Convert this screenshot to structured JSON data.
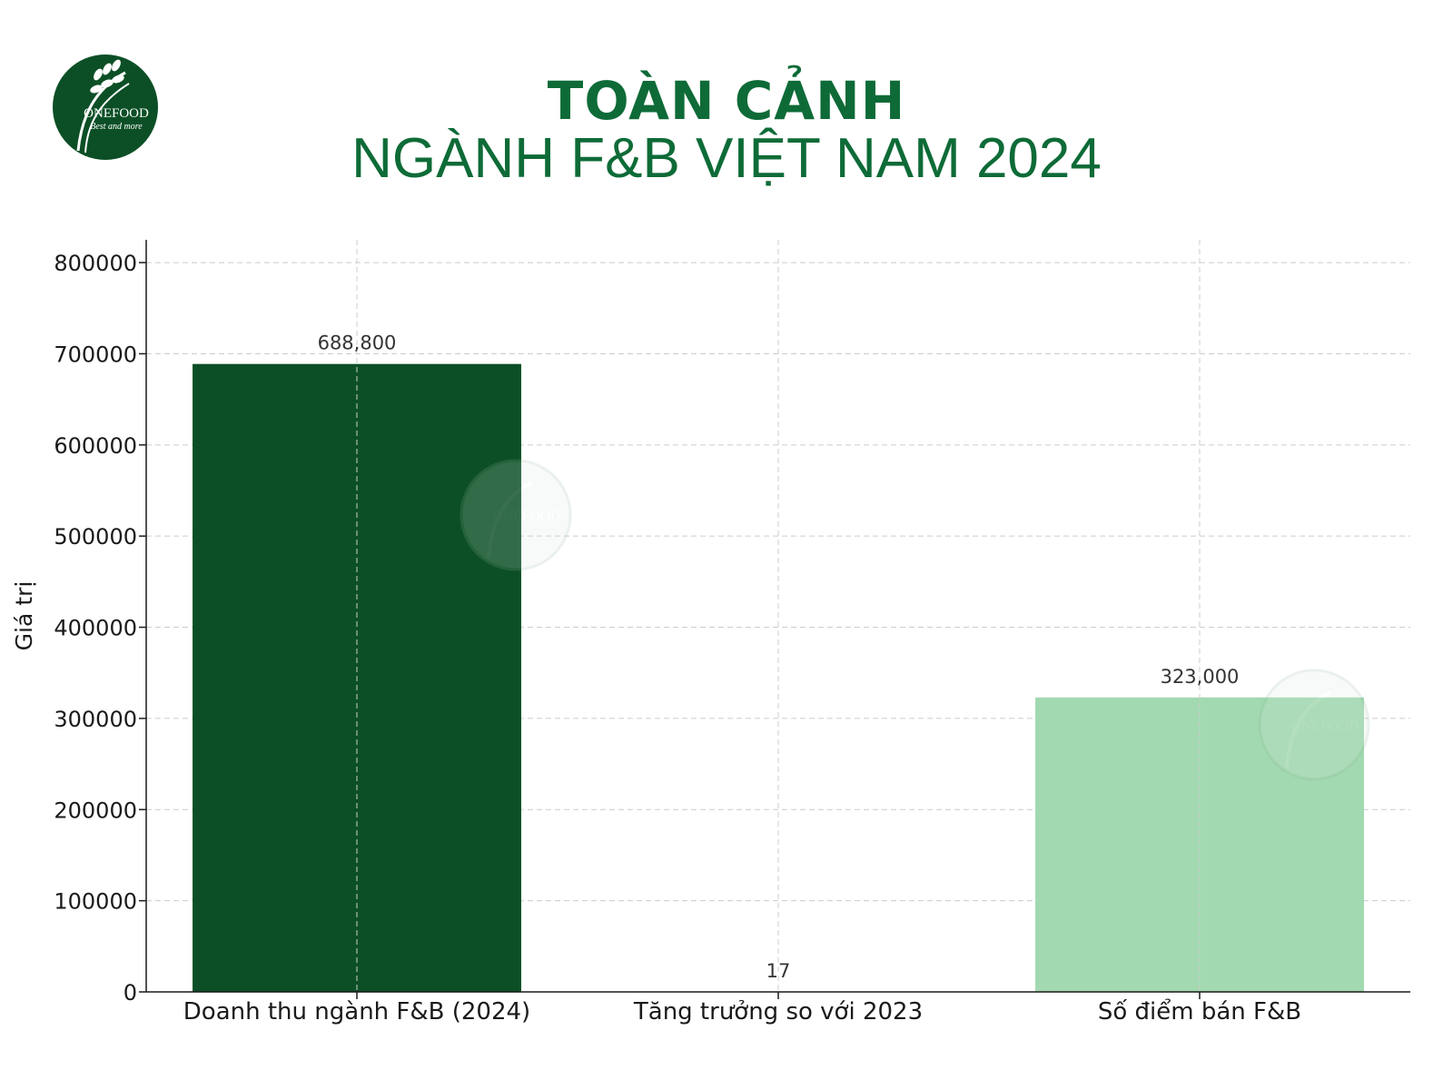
{
  "header": {
    "logo_text": "ONEFOOD",
    "logo_tagline": "Best and more",
    "title_line1": "TOÀN CẢNH",
    "title_line2": "NGÀNH F&B VIỆT NAM 2024"
  },
  "chart_data": {
    "type": "bar",
    "categories": [
      "Doanh thu ngành F&B (2024)",
      "Tăng trưởng so với 2023",
      "Số điểm bán F&B"
    ],
    "values": [
      688800,
      17,
      323000
    ],
    "data_labels": [
      "688,800",
      "17",
      "323,000"
    ],
    "bar_colors": [
      "#0c4f26",
      "#1f8a48",
      "#a2d9b0"
    ],
    "ylabel": "Giá trị",
    "xlabel": "",
    "ylim": [
      0,
      825000
    ],
    "yticks": [
      0,
      100000,
      200000,
      300000,
      400000,
      500000,
      600000,
      700000,
      800000
    ],
    "ytick_labels": [
      "0",
      "100000",
      "200000",
      "300000",
      "400000",
      "500000",
      "600000",
      "700000",
      "800000"
    ],
    "grid": true,
    "legend": "none"
  },
  "watermark": {
    "text": "ONEFOOD",
    "tagline": "Best and more"
  }
}
